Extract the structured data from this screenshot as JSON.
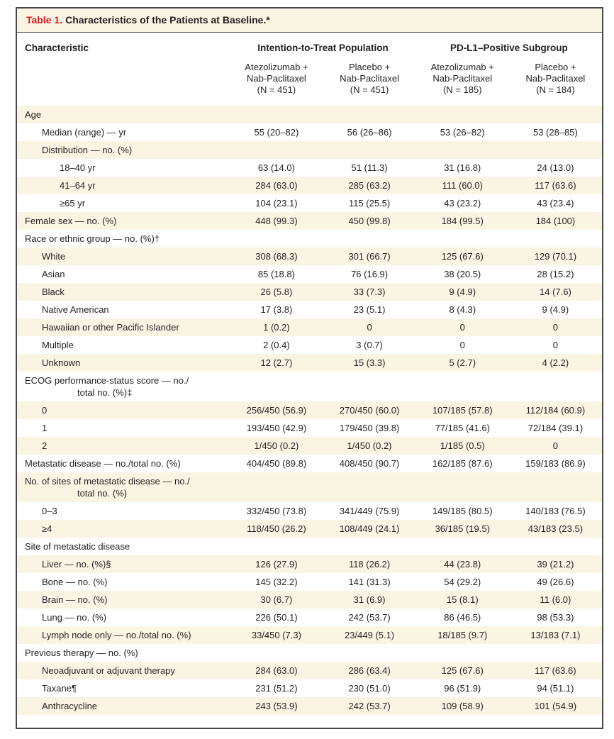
{
  "title": {
    "label": "Table 1.",
    "text": "Characteristics of the Patients at Baseline.*"
  },
  "header": {
    "characteristic": "Characteristic",
    "groups": [
      {
        "label": "Intention-to-Treat Population"
      },
      {
        "label": "PD-L1–Positive Subgroup"
      }
    ],
    "cols": [
      {
        "l1": "Atezolizumab +",
        "l2": "Nab-Paclitaxel",
        "l3": "(N = 451)"
      },
      {
        "l1": "Placebo +",
        "l2": "Nab-Paclitaxel",
        "l3": "(N = 451)"
      },
      {
        "l1": "Atezolizumab +",
        "l2": "Nab-Paclitaxel",
        "l3": "(N = 185)"
      },
      {
        "l1": "Placebo +",
        "l2": "Nab-Paclitaxel",
        "l3": "(N = 184)"
      }
    ]
  },
  "colors": {
    "accent_red": "#d22027",
    "row_stripe": "#faf4e3",
    "frame": "#48484a",
    "text": "#231f20"
  },
  "rows": [
    {
      "label": "Age",
      "indent": 0,
      "values": [
        "",
        "",
        "",
        ""
      ]
    },
    {
      "label": "Median (range) — yr",
      "indent": 1,
      "values": [
        "55 (20–82)",
        "56 (26–86)",
        "53 (26–82)",
        "53 (28–85)"
      ]
    },
    {
      "label": "Distribution — no. (%)",
      "indent": 1,
      "values": [
        "",
        "",
        "",
        ""
      ]
    },
    {
      "label": "18–40 yr",
      "indent": 2,
      "values": [
        "63 (14.0)",
        "51 (11.3)",
        "31 (16.8)",
        "24 (13.0)"
      ]
    },
    {
      "label": "41–64 yr",
      "indent": 2,
      "values": [
        "284 (63.0)",
        "285 (63.2)",
        "111 (60.0)",
        "117 (63.6)"
      ]
    },
    {
      "label": "≥65 yr",
      "indent": 2,
      "values": [
        "104 (23.1)",
        "115 (25.5)",
        "43 (23.2)",
        "43 (23.4)"
      ]
    },
    {
      "label": "Female sex — no. (%)",
      "indent": 0,
      "values": [
        "448 (99.3)",
        "450 (99.8)",
        "184 (99.5)",
        "184 (100)"
      ]
    },
    {
      "label": "Race or ethnic group — no. (%)†",
      "indent": 0,
      "values": [
        "",
        "",
        "",
        ""
      ]
    },
    {
      "label": "White",
      "indent": 1,
      "values": [
        "308 (68.3)",
        "301 (66.7)",
        "125 (67.6)",
        "129 (70.1)"
      ]
    },
    {
      "label": "Asian",
      "indent": 1,
      "values": [
        "85 (18.8)",
        "76 (16.9)",
        "38 (20.5)",
        "28 (15.2)"
      ]
    },
    {
      "label": "Black",
      "indent": 1,
      "values": [
        "26 (5.8)",
        "33 (7.3)",
        "9 (4.9)",
        "14 (7.6)"
      ]
    },
    {
      "label": "Native American",
      "indent": 1,
      "values": [
        "17 (3.8)",
        "23 (5.1)",
        "8 (4.3)",
        "9 (4.9)"
      ]
    },
    {
      "label": "Hawaiian or other Pacific Islander",
      "indent": 1,
      "values": [
        "1 (0.2)",
        "0",
        "0",
        "0"
      ]
    },
    {
      "label": "Multiple",
      "indent": 1,
      "values": [
        "2 (0.4)",
        "3 (0.7)",
        "0",
        "0"
      ]
    },
    {
      "label": "Unknown",
      "indent": 1,
      "values": [
        "12 (2.7)",
        "15 (3.3)",
        "5 (2.7)",
        "4 (2.2)"
      ]
    },
    {
      "label": "ECOG performance-status score — no./",
      "label2": "total no. (%)‡",
      "indent": 0,
      "values": [
        "",
        "",
        "",
        ""
      ]
    },
    {
      "label": "0",
      "indent": 1,
      "values": [
        "256/450 (56.9)",
        "270/450 (60.0)",
        "107/185 (57.8)",
        "112/184 (60.9)"
      ]
    },
    {
      "label": "1",
      "indent": 1,
      "values": [
        "193/450 (42.9)",
        "179/450 (39.8)",
        "77/185 (41.6)",
        "72/184 (39.1)"
      ]
    },
    {
      "label": "2",
      "indent": 1,
      "values": [
        "1/450 (0.2)",
        "1/450 (0.2)",
        "1/185 (0.5)",
        "0"
      ]
    },
    {
      "label": "Metastatic disease — no./total no. (%)",
      "indent": 0,
      "values": [
        "404/450 (89.8)",
        "408/450 (90.7)",
        "162/185 (87.6)",
        "159/183 (86.9)"
      ]
    },
    {
      "label": "No. of sites of metastatic disease — no./",
      "label2": "total no. (%)",
      "indent": 0,
      "values": [
        "",
        "",
        "",
        ""
      ]
    },
    {
      "label": "0–3",
      "indent": 1,
      "values": [
        "332/450 (73.8)",
        "341/449 (75.9)",
        "149/185 (80.5)",
        "140/183 (76.5)"
      ]
    },
    {
      "label": "≥4",
      "indent": 1,
      "values": [
        "118/450 (26.2)",
        "108/449 (24.1)",
        "36/185 (19.5)",
        "43/183 (23.5)"
      ]
    },
    {
      "label": "Site of metastatic disease",
      "indent": 0,
      "values": [
        "",
        "",
        "",
        ""
      ]
    },
    {
      "label": "Liver — no. (%)§",
      "indent": 1,
      "values": [
        "126 (27.9)",
        "118 (26.2)",
        "44 (23.8)",
        "39 (21.2)"
      ]
    },
    {
      "label": "Bone — no. (%)",
      "indent": 1,
      "values": [
        "145 (32.2)",
        "141 (31.3)",
        "54 (29.2)",
        "49 (26.6)"
      ]
    },
    {
      "label": "Brain — no. (%)",
      "indent": 1,
      "values": [
        "30 (6.7)",
        "31 (6.9)",
        "15 (8.1)",
        "11 (6.0)"
      ]
    },
    {
      "label": "Lung — no. (%)",
      "indent": 1,
      "values": [
        "226 (50.1)",
        "242 (53.7)",
        "86 (46.5)",
        "98 (53.3)"
      ]
    },
    {
      "label": "Lymph node only — no./total no. (%)",
      "indent": 1,
      "values": [
        "33/450 (7.3)",
        "23/449 (5.1)",
        "18/185 (9.7)",
        "13/183 (7.1)"
      ]
    },
    {
      "label": "Previous therapy — no. (%)",
      "indent": 0,
      "values": [
        "",
        "",
        "",
        ""
      ]
    },
    {
      "label": "Neoadjuvant or adjuvant therapy",
      "indent": 1,
      "values": [
        "284 (63.0)",
        "286 (63.4)",
        "125 (67.6)",
        "117 (63.6)"
      ]
    },
    {
      "label": "Taxane¶",
      "indent": 1,
      "values": [
        "231 (51.2)",
        "230 (51.0)",
        "96 (51.9)",
        "94 (51.1)"
      ]
    },
    {
      "label": "Anthracycline",
      "indent": 1,
      "values": [
        "243 (53.9)",
        "242 (53.7)",
        "109 (58.9)",
        "101 (54.9)"
      ]
    }
  ]
}
